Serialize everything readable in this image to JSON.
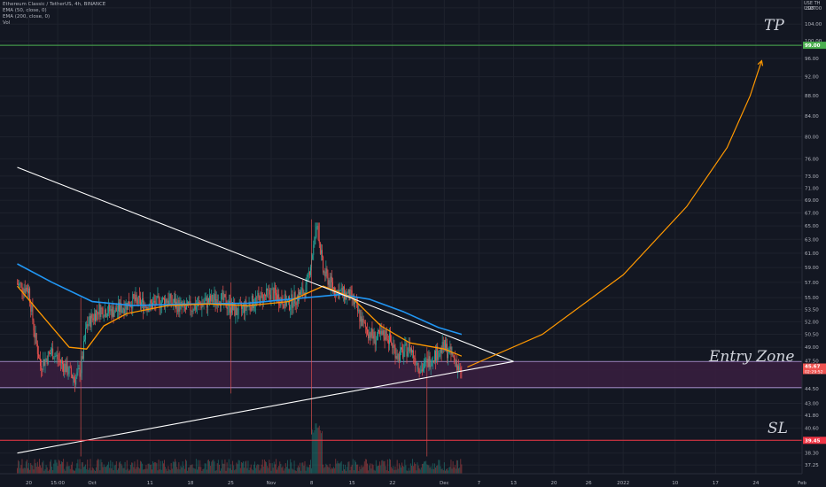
{
  "header": {
    "title_line": "Ethereum Classic / TetherUS, 4h, BINANCE",
    "indicators": [
      "EMA (50, close, 0)",
      "EMA (200, close, 0)",
      "Vol"
    ],
    "currency": [
      "USE TH",
      "USDT"
    ]
  },
  "annotations": {
    "tp": "TP",
    "entry": "Entry Zone",
    "sl": "SL"
  },
  "price_labels": {
    "tp": "99.00",
    "current_price": "45.67",
    "countdown": "02:29:52",
    "sl": "39.45"
  },
  "colors": {
    "background": "#131722",
    "grid": "#1e222d",
    "tp_line": "#4caf50",
    "sl_line": "#f23645",
    "entry_zone_fill": "#3a1f3f",
    "entry_zone_border": "#b39ddb",
    "ema50": "#ff9800",
    "ema200": "#2196f3",
    "up_candle": "#26a69a",
    "down_candle": "#ef5350",
    "projection": "#ff9800",
    "trendline": "#ffffff"
  },
  "chart_data": {
    "type": "candlestick",
    "symbol": "ETCUSDT",
    "interval": "4h",
    "y_axis": {
      "scale": "log",
      "ticks": [
        "37.25",
        "38.30",
        "39.45",
        "40.60",
        "41.80",
        "43.00",
        "44.50",
        "46.50",
        "47.50",
        "49.00",
        "50.50",
        "52.00",
        "53.50",
        "55.00",
        "57.00",
        "59.00",
        "61.00",
        "63.00",
        "65.00",
        "67.00",
        "69.00",
        "71.00",
        "73.00",
        "76.00",
        "80.00",
        "84.00",
        "88.00",
        "92.00",
        "96.00",
        "100.00",
        "104.00",
        "108.00"
      ],
      "range": [
        36.5,
        110
      ]
    },
    "x_axis": {
      "ticks": [
        "20",
        "15:00",
        "Oct",
        "11",
        "18",
        "25",
        "Nov",
        "8",
        "15",
        "22",
        "Dec",
        "7",
        "13",
        "20",
        "26",
        "2022",
        "10",
        "17",
        "24",
        "Feb"
      ]
    },
    "levels": {
      "take_profit": 99.0,
      "stop_loss": 39.45,
      "entry_zone": [
        44.6,
        47.4
      ]
    },
    "price_path": [
      {
        "date": "2021-09-18",
        "close": 56.8
      },
      {
        "date": "2021-09-20",
        "close": 56.0
      },
      {
        "date": "2021-09-21",
        "close": 50.5
      },
      {
        "date": "2021-09-22",
        "close": 47.0
      },
      {
        "date": "2021-09-24",
        "close": 48.5
      },
      {
        "date": "2021-09-26",
        "close": 47.0
      },
      {
        "date": "2021-09-28",
        "close": 45.5
      },
      {
        "date": "2021-09-29",
        "close": 46.5
      },
      {
        "date": "2021-09-30",
        "close": 51.5
      },
      {
        "date": "2021-10-02",
        "close": 53.5
      },
      {
        "date": "2021-10-05",
        "close": 53.3
      },
      {
        "date": "2021-10-08",
        "close": 54.6
      },
      {
        "date": "2021-10-11",
        "close": 54.0
      },
      {
        "date": "2021-10-14",
        "close": 54.8
      },
      {
        "date": "2021-10-17",
        "close": 53.5
      },
      {
        "date": "2021-10-20",
        "close": 54.2
      },
      {
        "date": "2021-10-23",
        "close": 55.0
      },
      {
        "date": "2021-10-26",
        "close": 53.2
      },
      {
        "date": "2021-10-29",
        "close": 54.5
      },
      {
        "date": "2021-11-01",
        "close": 55.6
      },
      {
        "date": "2021-11-04",
        "close": 54.2
      },
      {
        "date": "2021-11-07",
        "close": 56.0
      },
      {
        "date": "2021-11-09",
        "close": 65.0
      },
      {
        "date": "2021-11-10",
        "close": 58.5
      },
      {
        "date": "2021-11-12",
        "close": 56.0
      },
      {
        "date": "2021-11-15",
        "close": 55.0
      },
      {
        "date": "2021-11-17",
        "close": 51.5
      },
      {
        "date": "2021-11-19",
        "close": 50.0
      },
      {
        "date": "2021-11-21",
        "close": 50.5
      },
      {
        "date": "2021-11-23",
        "close": 48.0
      },
      {
        "date": "2021-11-25",
        "close": 49.0
      },
      {
        "date": "2021-11-27",
        "close": 46.5
      },
      {
        "date": "2021-11-29",
        "close": 48.0
      },
      {
        "date": "2021-12-01",
        "close": 49.0
      },
      {
        "date": "2021-12-03",
        "close": 47.5
      },
      {
        "date": "2021-12-04",
        "close": 45.67
      }
    ],
    "ema50": [
      {
        "date": "2021-09-18",
        "value": 56.5
      },
      {
        "date": "2021-09-22",
        "value": 53.0
      },
      {
        "date": "2021-09-27",
        "value": 49.0
      },
      {
        "date": "2021-09-30",
        "value": 48.8
      },
      {
        "date": "2021-10-03",
        "value": 51.5
      },
      {
        "date": "2021-10-07",
        "value": 53.0
      },
      {
        "date": "2021-10-14",
        "value": 54.0
      },
      {
        "date": "2021-10-21",
        "value": 54.2
      },
      {
        "date": "2021-10-28",
        "value": 54.0
      },
      {
        "date": "2021-11-04",
        "value": 54.5
      },
      {
        "date": "2021-11-10",
        "value": 56.5
      },
      {
        "date": "2021-11-15",
        "value": 55.0
      },
      {
        "date": "2021-11-20",
        "value": 51.5
      },
      {
        "date": "2021-11-25",
        "value": 49.5
      },
      {
        "date": "2021-12-01",
        "value": 48.8
      },
      {
        "date": "2021-12-04",
        "value": 48.0
      }
    ],
    "ema200": [
      {
        "date": "2021-09-18",
        "value": 59.5
      },
      {
        "date": "2021-09-24",
        "value": 57.0
      },
      {
        "date": "2021-10-01",
        "value": 54.5
      },
      {
        "date": "2021-10-08",
        "value": 54.0
      },
      {
        "date": "2021-10-18",
        "value": 54.2
      },
      {
        "date": "2021-10-28",
        "value": 54.3
      },
      {
        "date": "2021-11-07",
        "value": 55.0
      },
      {
        "date": "2021-11-13",
        "value": 55.4
      },
      {
        "date": "2021-11-18",
        "value": 54.8
      },
      {
        "date": "2021-11-24",
        "value": 53.2
      },
      {
        "date": "2021-11-30",
        "value": 51.3
      },
      {
        "date": "2021-12-04",
        "value": 50.5
      }
    ],
    "triangle": {
      "upper_trendline": [
        {
          "date": "2021-09-18",
          "value": 74.5
        },
        {
          "date": "2021-12-13",
          "value": 47.4
        }
      ],
      "lower_trendline": [
        {
          "date": "2021-09-18",
          "value": 38.3
        },
        {
          "date": "2021-12-13",
          "value": 47.4
        }
      ],
      "apex": {
        "date": "2021-12-13",
        "value": 47.4
      }
    },
    "projection": [
      {
        "date": "2021-12-05",
        "value": 46.8
      },
      {
        "date": "2021-12-18",
        "value": 50.5
      },
      {
        "date": "2022-01-01",
        "value": 58.0
      },
      {
        "date": "2022-01-12",
        "value": 68.0
      },
      {
        "date": "2022-01-19",
        "value": 78.0
      },
      {
        "date": "2022-01-23",
        "value": 88.0
      },
      {
        "date": "2022-01-25",
        "value": 95.5
      }
    ]
  }
}
